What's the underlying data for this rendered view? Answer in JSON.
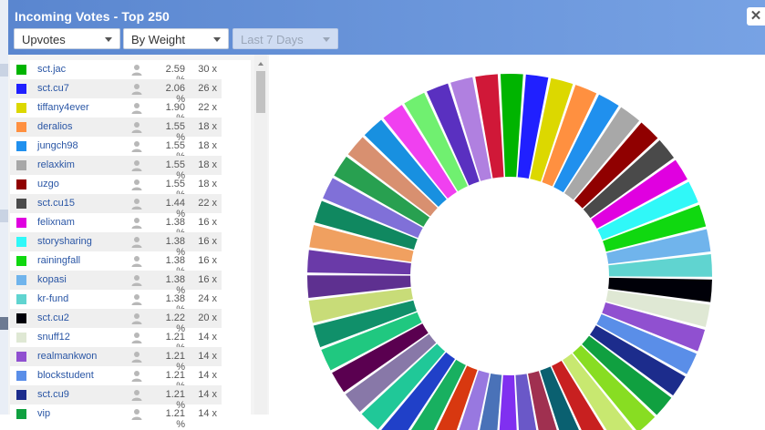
{
  "dialog": {
    "title": "Incoming Votes - Top 250",
    "close_glyph": "✕",
    "close_icon": "close-icon"
  },
  "filters": {
    "vote_type": "Upvotes",
    "ordering": "By Weight",
    "period": "Last 7 Days"
  },
  "voters": [
    {
      "name": "sct.jac",
      "percent": "2.59 %",
      "count": "30 x",
      "color": "#00b400"
    },
    {
      "name": "sct.cu7",
      "percent": "2.06 %",
      "count": "26 x",
      "color": "#2020ff"
    },
    {
      "name": "tiffany4ever",
      "percent": "1.90 %",
      "count": "22 x",
      "color": "#dcd800"
    },
    {
      "name": "deralios",
      "percent": "1.55 %",
      "count": "18 x",
      "color": "#ff9040"
    },
    {
      "name": "jungch98",
      "percent": "1.55 %",
      "count": "18 x",
      "color": "#2090ee"
    },
    {
      "name": "relaxkim",
      "percent": "1.55 %",
      "count": "18 x",
      "color": "#a8a8a8"
    },
    {
      "name": "uzgo",
      "percent": "1.55 %",
      "count": "18 x",
      "color": "#900000"
    },
    {
      "name": "sct.cu15",
      "percent": "1.44 %",
      "count": "22 x",
      "color": "#4a4a4a"
    },
    {
      "name": "felixnam",
      "percent": "1.38 %",
      "count": "16 x",
      "color": "#e000e0"
    },
    {
      "name": "storysharing",
      "percent": "1.38 %",
      "count": "16 x",
      "color": "#30f8f8"
    },
    {
      "name": "rainingfall",
      "percent": "1.38 %",
      "count": "16 x",
      "color": "#10d810"
    },
    {
      "name": "kopasi",
      "percent": "1.38 %",
      "count": "16 x",
      "color": "#70b4ec"
    },
    {
      "name": "kr-fund",
      "percent": "1.38 %",
      "count": "24 x",
      "color": "#60d4d0"
    },
    {
      "name": "sct.cu2",
      "percent": "1.22 %",
      "count": "20 x",
      "color": "#000008"
    },
    {
      "name": "snuff12",
      "percent": "1.21 %",
      "count": "14 x",
      "color": "#dfe8d4"
    },
    {
      "name": "realmankwon",
      "percent": "1.21 %",
      "count": "14 x",
      "color": "#9050d0"
    },
    {
      "name": "blockstudent",
      "percent": "1.21 %",
      "count": "14 x",
      "color": "#5a8ee8"
    },
    {
      "name": "sct.cu9",
      "percent": "1.21 %",
      "count": "14 x",
      "color": "#1c2c8c"
    },
    {
      "name": "vip",
      "percent": "1.21 %",
      "count": "14 x",
      "color": "#10a040"
    }
  ],
  "chart_data": {
    "type": "pie",
    "style": "donut",
    "visible_segment_colors": [
      "#00b400",
      "#2020ff",
      "#dcd800",
      "#ff9040",
      "#2090ee",
      "#a8a8a8",
      "#900000",
      "#4a4a4a",
      "#e000e0",
      "#30f8f8",
      "#10d810",
      "#70b4ec",
      "#60d4d0",
      "#000008",
      "#dfe8d4",
      "#9050d0",
      "#5a8ee8",
      "#1c2c8c",
      "#10a040",
      "#88dd22",
      "#c8e870",
      "#c82020",
      "#0a6070",
      "#a03050",
      "#6a58c8",
      "#8030f0",
      "#4a72b8",
      "#9878e0",
      "#d83810",
      "#18b060",
      "#2040c8",
      "#20c898",
      "#8878a8",
      "#5a0050",
      "#20c880",
      "#10906a",
      "#c8dc78",
      "#5e3090",
      "#6a3aa8",
      "#f0a060",
      "#108860",
      "#8070d8",
      "#28a050",
      "#d89070",
      "#1890e0",
      "#f040f0",
      "#70f070",
      "#5a30c0",
      "#b080e0",
      "#d01838"
    ]
  }
}
